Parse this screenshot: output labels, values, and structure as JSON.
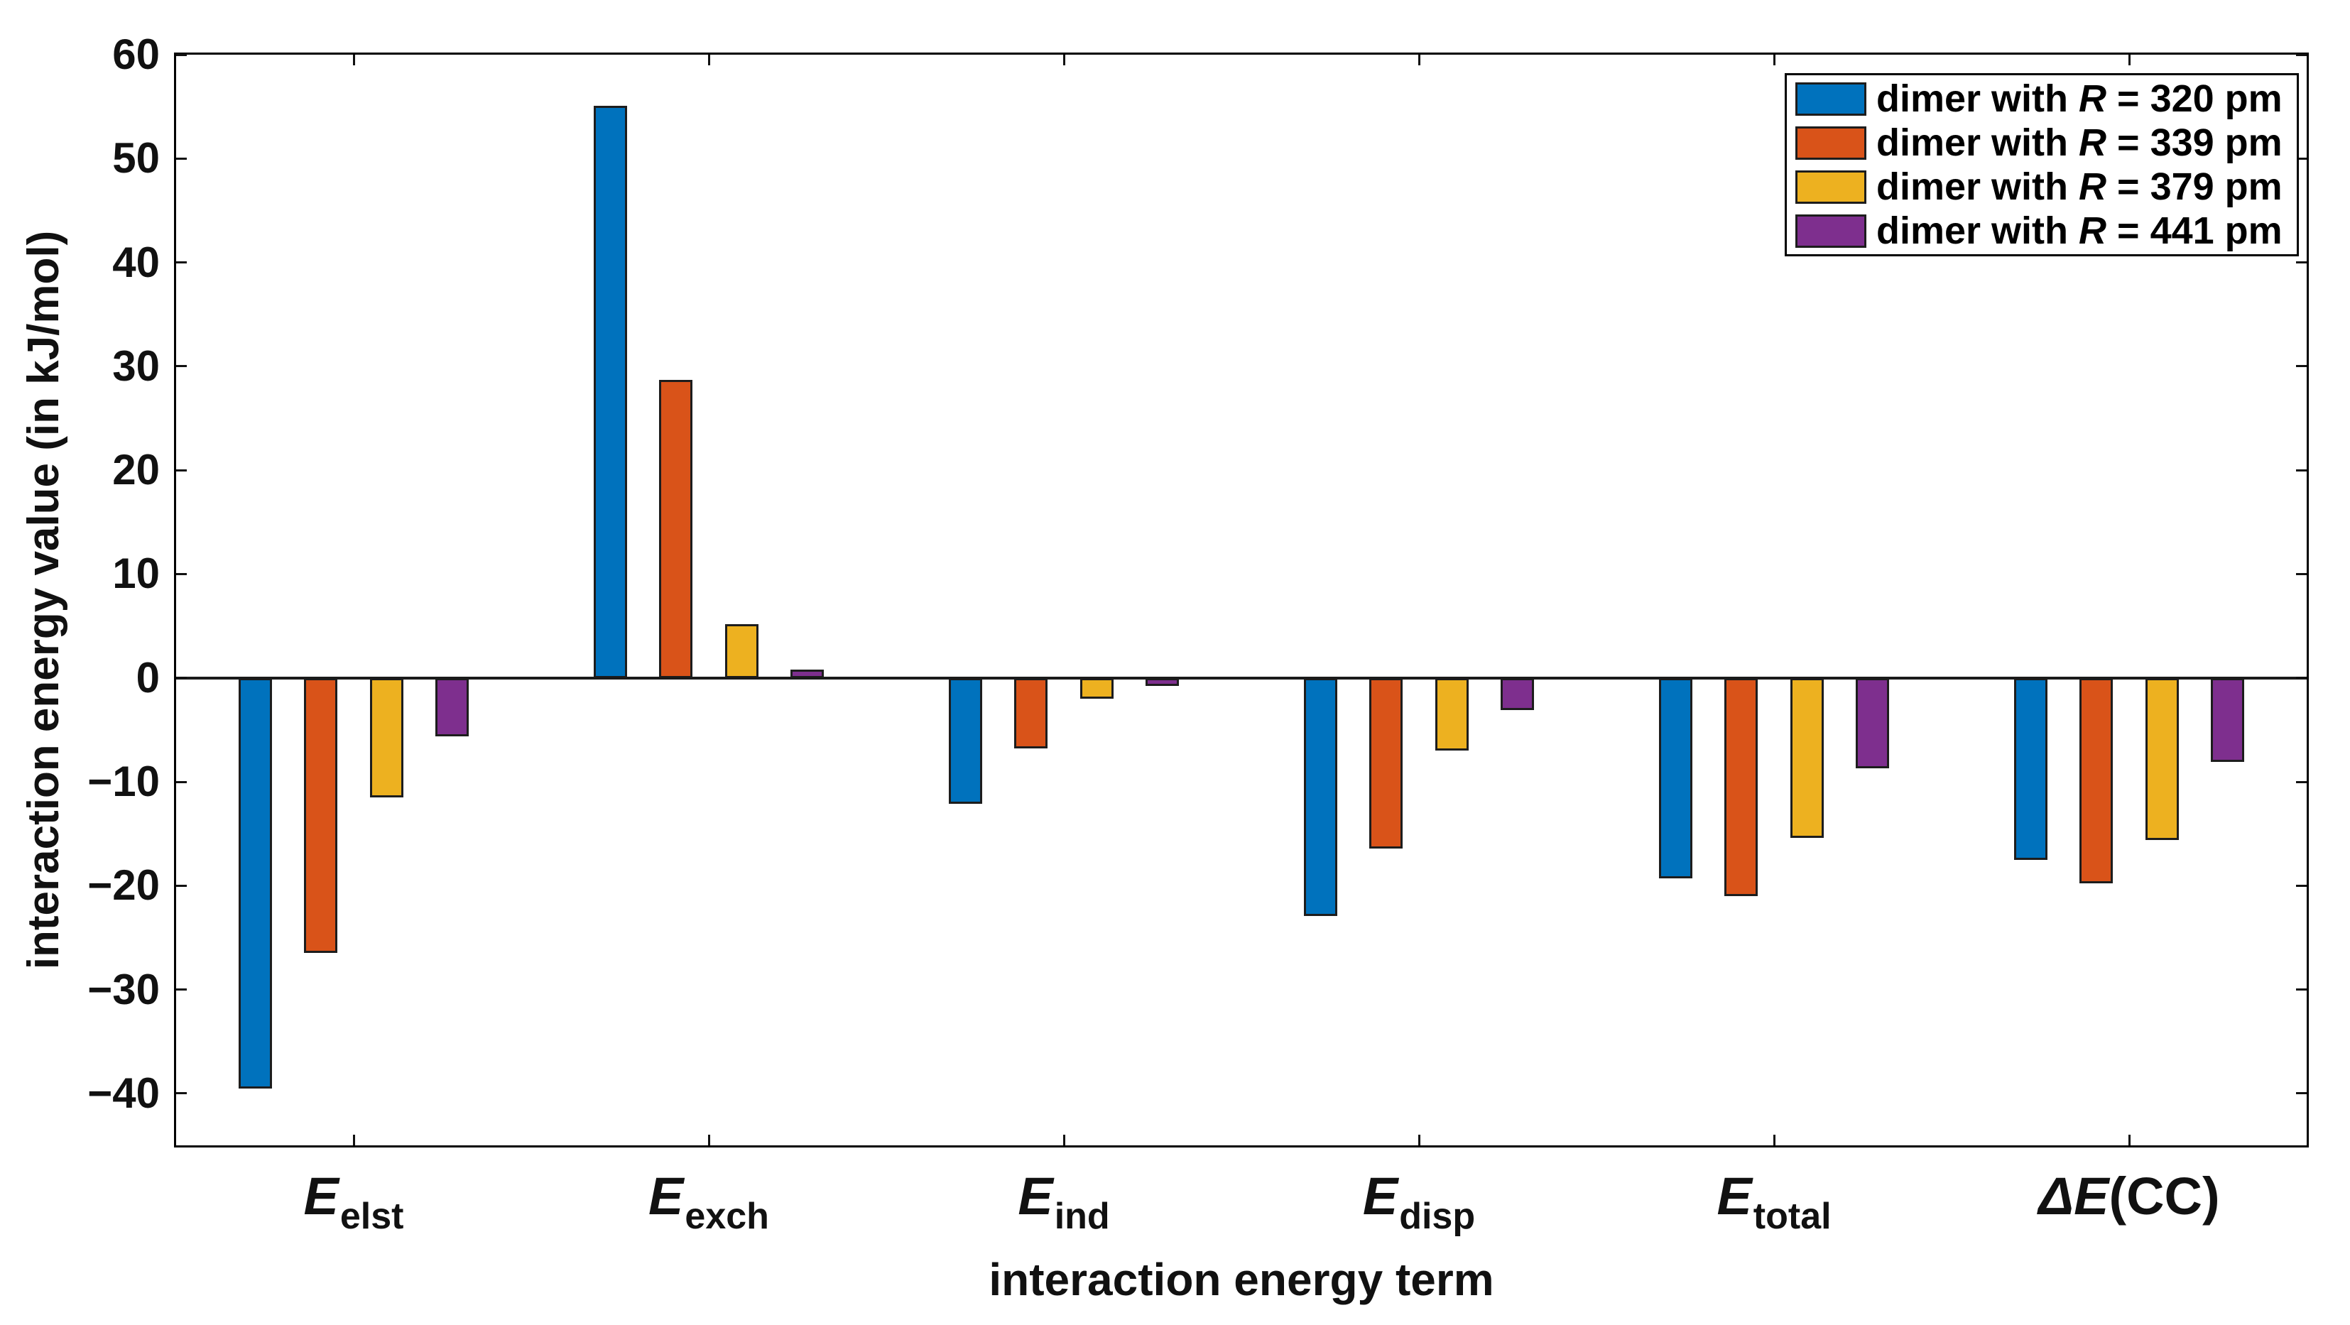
{
  "figure": {
    "background": "#ffffff",
    "axis_color": "#000000",
    "bar_edge_color": "#1d1d1d"
  },
  "chart_data": {
    "type": "bar",
    "title": "",
    "xlabel": "interaction energy term",
    "ylabel": "interaction energy value (in kJ/mol)",
    "ylim": [
      -45,
      60
    ],
    "grid": false,
    "legend_position": "top-right",
    "categories": [
      "E_elst",
      "E_exch",
      "E_ind",
      "E_disp",
      "E_total",
      "ΔE(CC)"
    ],
    "categories_rich": [
      {
        "pre": "",
        "main": "E",
        "sub": "elst",
        "post": ""
      },
      {
        "pre": "",
        "main": "E",
        "sub": "exch",
        "post": ""
      },
      {
        "pre": "",
        "main": "E",
        "sub": "ind",
        "post": ""
      },
      {
        "pre": "",
        "main": "E",
        "sub": "disp",
        "post": ""
      },
      {
        "pre": "",
        "main": "E",
        "sub": "total",
        "post": ""
      },
      {
        "pre": "Δ",
        "main": "E",
        "sub": "",
        "post": "(CC)"
      }
    ],
    "y_ticks": [
      60,
      50,
      40,
      30,
      20,
      10,
      0,
      -10,
      -20,
      -30,
      -40
    ],
    "y_tick_labels": [
      "60",
      "50",
      "40",
      "30",
      "20",
      "10",
      "0",
      "−10",
      "−20",
      "−30",
      "−40"
    ],
    "series": [
      {
        "name": "dimer with R = 320 pm",
        "color": "#0072BD",
        "values": [
          -39.5,
          55.1,
          -12.1,
          -22.9,
          -19.3,
          -17.5
        ]
      },
      {
        "name": "dimer with R = 339 pm",
        "color": "#D95319",
        "values": [
          -26.5,
          28.7,
          -6.8,
          -16.4,
          -21.0,
          -19.8
        ]
      },
      {
        "name": "dimer with R = 379 pm",
        "color": "#EDB120",
        "values": [
          -11.5,
          5.2,
          -2.0,
          -7.0,
          -15.4,
          -15.6
        ]
      },
      {
        "name": "dimer with R = 441 pm",
        "color": "#7E2F8E",
        "values": [
          -5.6,
          0.8,
          -0.8,
          -3.1,
          -8.7,
          -8.1
        ]
      }
    ]
  },
  "legend": {
    "entries": [
      {
        "prefix": "dimer with ",
        "italic_var": "R",
        "suffix": " = 320 pm"
      },
      {
        "prefix": "dimer with ",
        "italic_var": "R",
        "suffix": " = 339 pm"
      },
      {
        "prefix": "dimer with ",
        "italic_var": "R",
        "suffix": " = 379 pm"
      },
      {
        "prefix": "dimer with ",
        "italic_var": "R",
        "suffix": " = 441 pm"
      }
    ]
  }
}
